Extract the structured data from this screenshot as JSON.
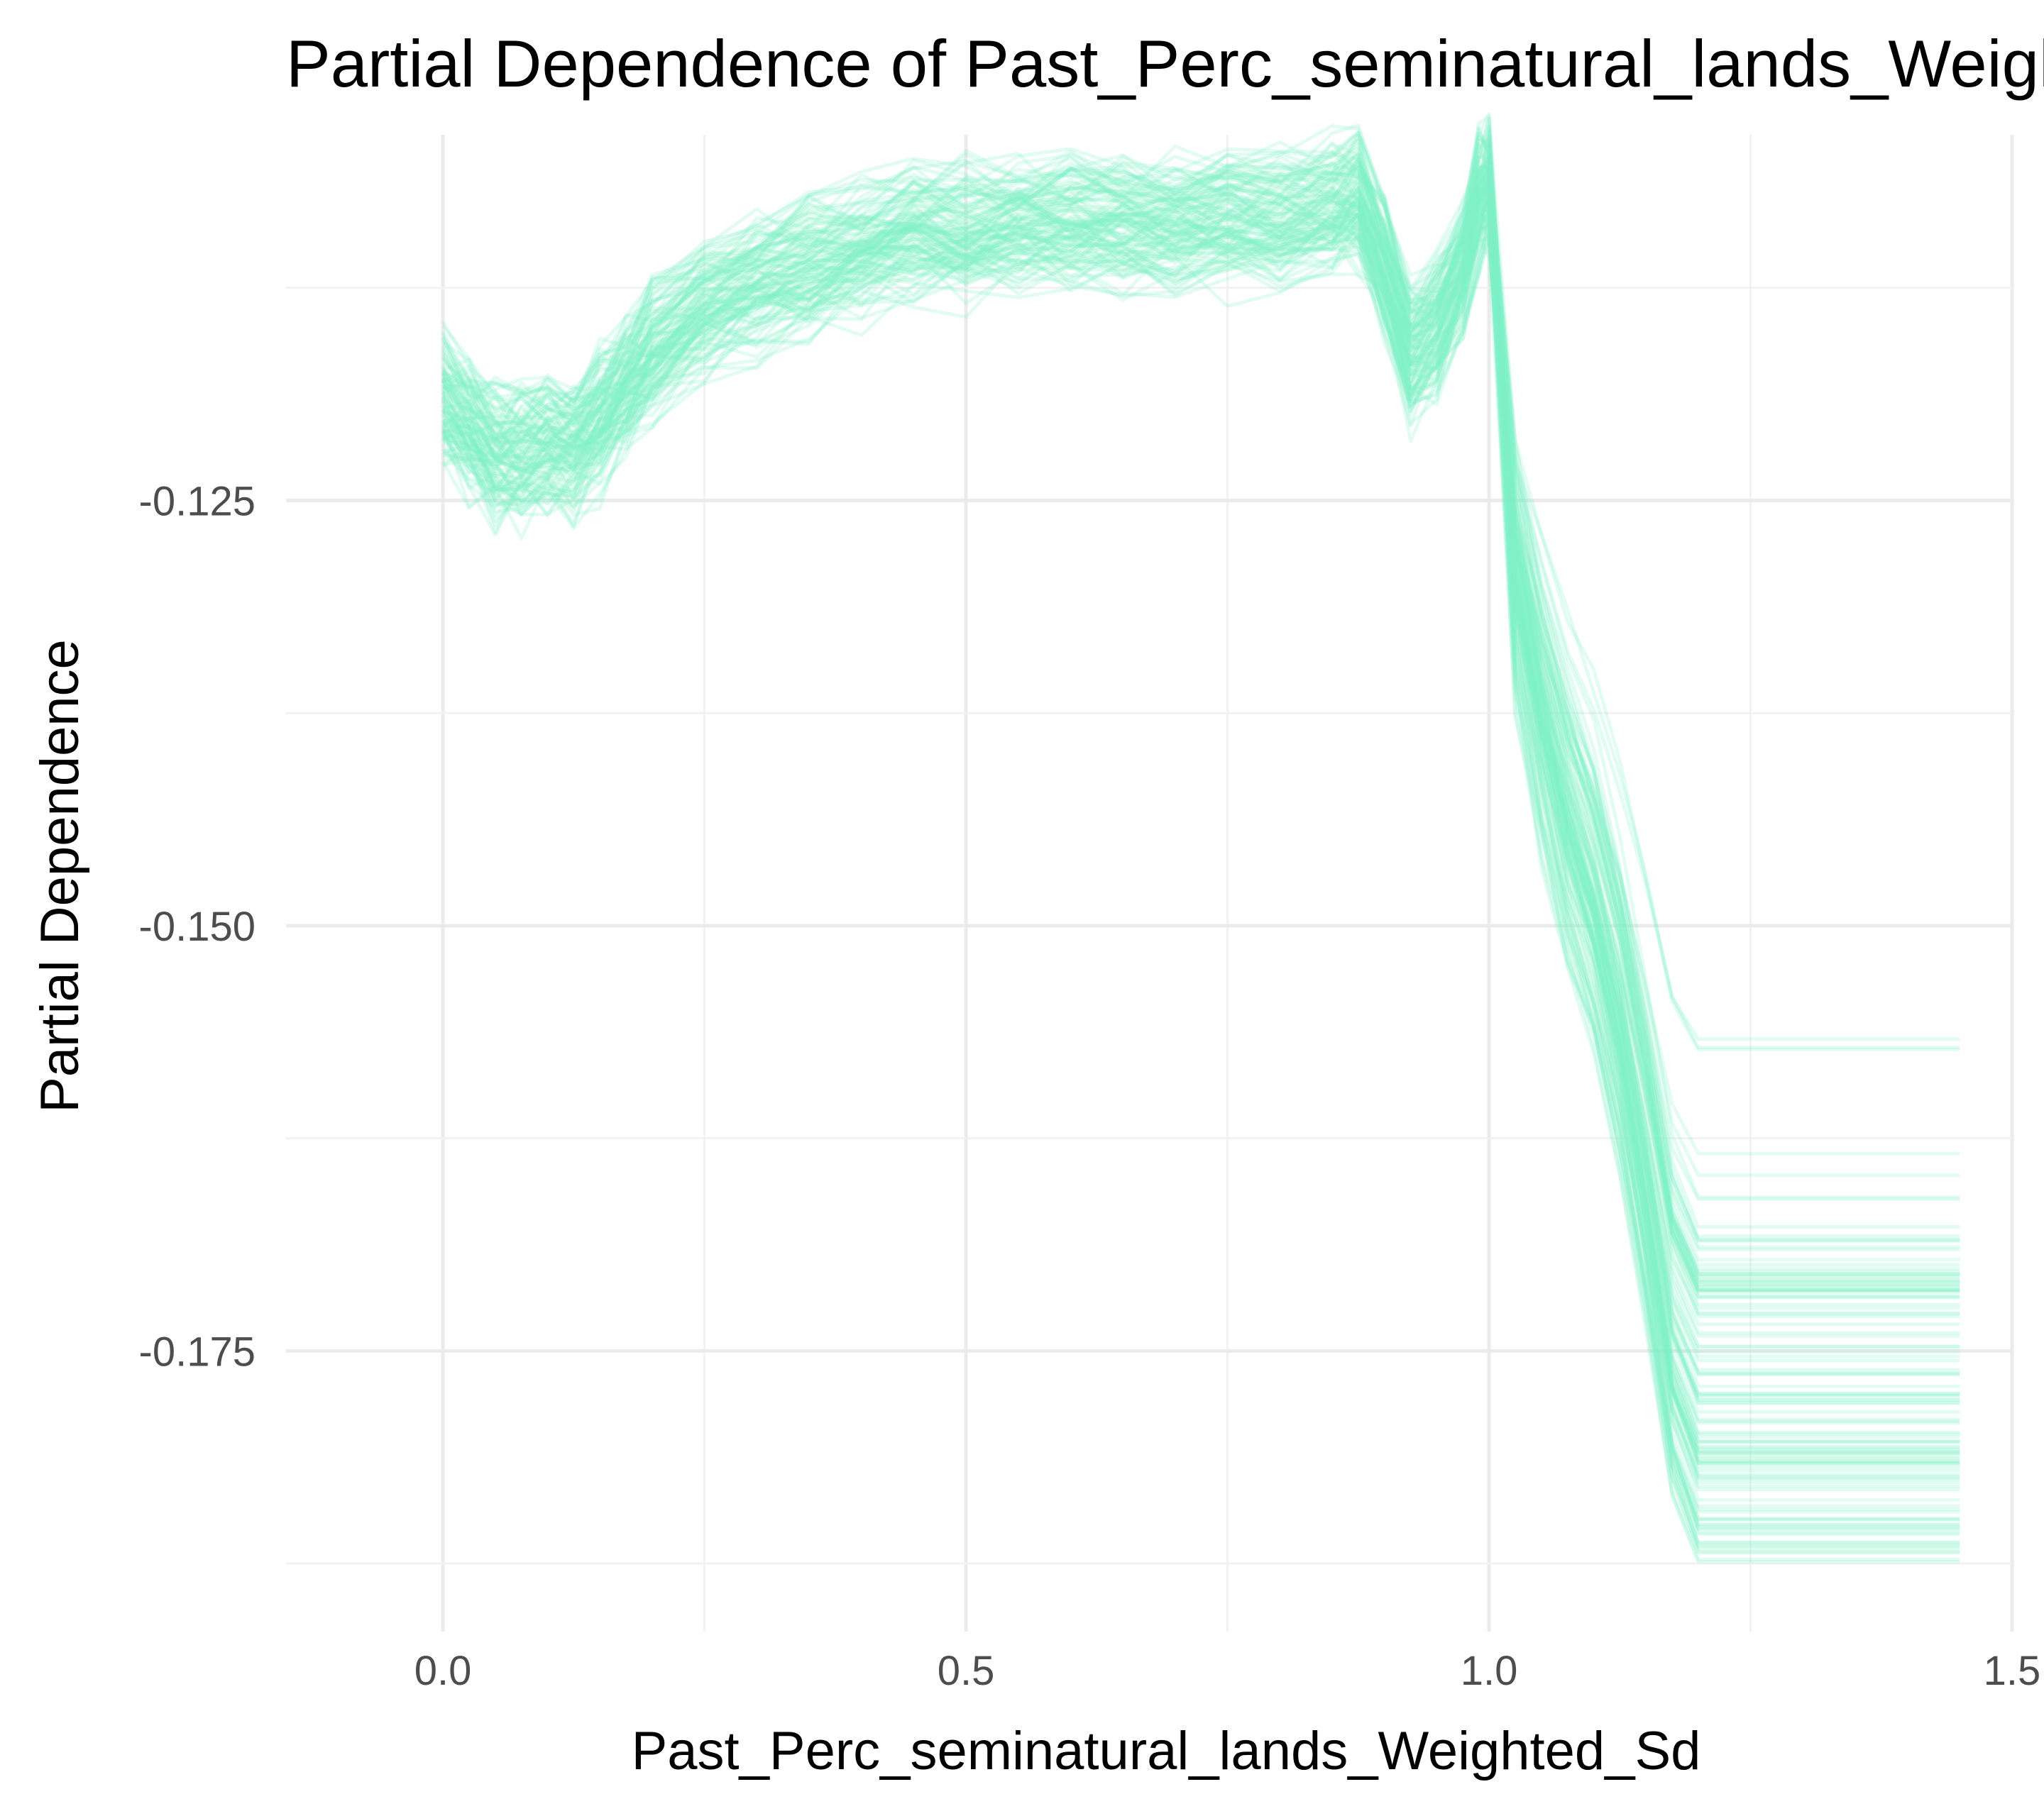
{
  "chart_data": {
    "type": "line",
    "title": "Partial Dependence of Past_Perc_seminatural_lands_Weighted_Sd",
    "xlabel": "Past_Perc_seminatural_lands_Weighted_Sd",
    "ylabel": "Partial Dependence",
    "xlim": [
      -0.15,
      1.5
    ],
    "ylim": [
      -0.1915,
      -0.1035
    ],
    "x_ticks": [
      0.0,
      0.5,
      1.0,
      1.5
    ],
    "x_tick_labels": [
      "0.0",
      "0.5",
      "1.0",
      "1.5"
    ],
    "y_ticks": [
      -0.125,
      -0.15,
      -0.175
    ],
    "y_tick_labels": [
      "-0.125",
      "-0.150",
      "-0.175"
    ],
    "grid": true,
    "legend": "none",
    "line_color": "#7ff0c8",
    "line_opacity": 0.22,
    "n_curves": 120,
    "x": [
      0.0,
      0.025,
      0.05,
      0.075,
      0.1,
      0.125,
      0.15,
      0.175,
      0.2,
      0.25,
      0.3,
      0.35,
      0.4,
      0.45,
      0.5,
      0.55,
      0.6,
      0.65,
      0.7,
      0.75,
      0.8,
      0.85,
      0.875,
      0.9,
      0.925,
      0.95,
      0.975,
      0.99,
      1.0,
      1.025,
      1.05,
      1.075,
      1.1,
      1.125,
      1.15,
      1.175,
      1.2,
      1.25,
      1.3,
      1.35,
      1.4,
      1.45
    ],
    "center_curve": [
      -0.1195,
      -0.121,
      -0.1225,
      -0.1225,
      -0.122,
      -0.122,
      -0.1205,
      -0.1185,
      -0.1165,
      -0.114,
      -0.1125,
      -0.1115,
      -0.1105,
      -0.1095,
      -0.1095,
      -0.109,
      -0.109,
      -0.109,
      -0.109,
      -0.1085,
      -0.1085,
      -0.108,
      -0.1075,
      -0.1115,
      -0.1165,
      -0.115,
      -0.1115,
      -0.1075,
      -0.1065,
      -0.1295,
      -0.138,
      -0.1445,
      -0.1495,
      -0.1565,
      -0.1655,
      -0.1755,
      -0.1795,
      -0.1795,
      -0.1795,
      -0.1795,
      -0.1795,
      -0.1795
    ],
    "tail_range": [
      -0.1875,
      -0.1555
    ]
  }
}
